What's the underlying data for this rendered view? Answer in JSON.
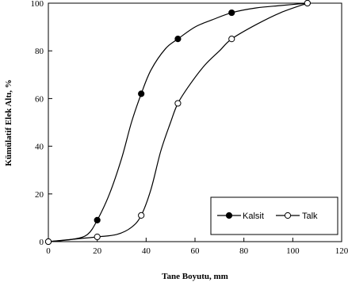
{
  "chart_data": {
    "type": "line",
    "xlabel": "Tane Boyutu, mm",
    "ylabel": "Kümülatif Elek Altı, %",
    "xlim": [
      0,
      120
    ],
    "ylim": [
      0,
      100
    ],
    "xticks": [
      0,
      20,
      40,
      60,
      80,
      100,
      120
    ],
    "yticks": [
      0,
      20,
      40,
      60,
      80,
      100
    ],
    "grid": false,
    "legend_position": "bottom-right",
    "series": [
      {
        "name": "Kalsit",
        "marker": "filled-circle",
        "color": "#000000",
        "x": [
          0,
          20,
          38,
          53,
          75,
          106
        ],
        "y": [
          0,
          9,
          62,
          85,
          96,
          100
        ],
        "curve": [
          [
            0,
            0
          ],
          [
            10,
            1
          ],
          [
            16,
            3
          ],
          [
            20,
            9
          ],
          [
            25,
            20
          ],
          [
            30,
            35
          ],
          [
            34,
            50
          ],
          [
            38,
            62
          ],
          [
            42,
            72
          ],
          [
            48,
            81
          ],
          [
            53,
            85
          ],
          [
            60,
            90
          ],
          [
            67,
            93
          ],
          [
            75,
            96
          ],
          [
            85,
            98
          ],
          [
            95,
            99
          ],
          [
            106,
            100
          ]
        ]
      },
      {
        "name": "Talk",
        "marker": "open-circle",
        "color": "#000000",
        "x": [
          0,
          20,
          38,
          53,
          75,
          106
        ],
        "y": [
          0,
          2,
          11,
          58,
          85,
          100
        ],
        "curve": [
          [
            0,
            0
          ],
          [
            10,
            1
          ],
          [
            20,
            2
          ],
          [
            28,
            3
          ],
          [
            34,
            6
          ],
          [
            38,
            11
          ],
          [
            42,
            22
          ],
          [
            46,
            38
          ],
          [
            50,
            50
          ],
          [
            53,
            58
          ],
          [
            58,
            66
          ],
          [
            64,
            74
          ],
          [
            70,
            80
          ],
          [
            75,
            85
          ],
          [
            85,
            91
          ],
          [
            95,
            96
          ],
          [
            106,
            100
          ]
        ]
      }
    ]
  }
}
